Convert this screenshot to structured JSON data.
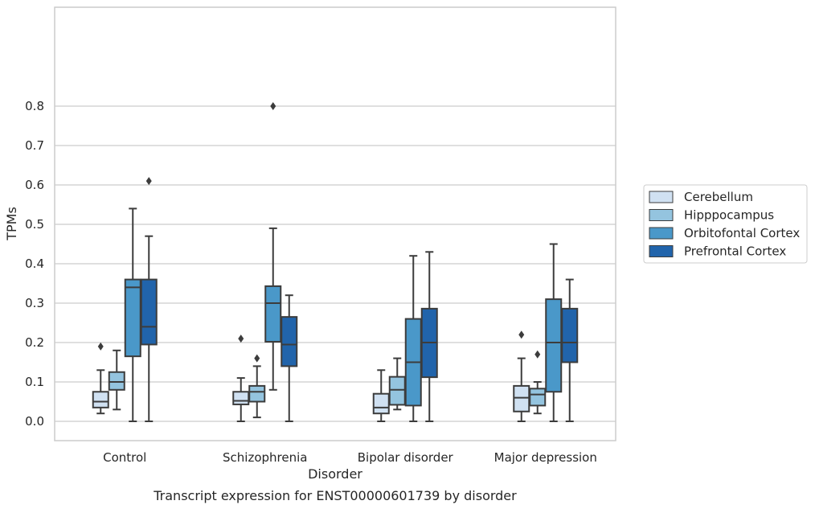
{
  "caption": "Transcript expression for ENST00000601739 by disorder",
  "chart_data": {
    "type": "box",
    "xlabel": "Disorder",
    "ylabel": "TPMs",
    "ylim": [
      -0.04,
      0.84
    ],
    "yticks": [
      0.0,
      0.1,
      0.2,
      0.3,
      0.4,
      0.5,
      0.6,
      0.7,
      0.8
    ],
    "ytick_labels": [
      "0.0",
      "0.1",
      "0.2",
      "0.3",
      "0.4",
      "0.5",
      "0.6",
      "0.7",
      "0.8"
    ],
    "categories": [
      "Control",
      "Schizophrenia",
      "Bipolar disorder",
      "Major depression"
    ],
    "grid": "horizontal",
    "legend_position": "right",
    "series": [
      {
        "name": "Cerebellum",
        "color": "#d0e1f2",
        "boxes": [
          {
            "whisker_low": 0.02,
            "q1": 0.035,
            "median": 0.05,
            "q3": 0.075,
            "whisker_high": 0.13,
            "outliers": [
              0.19
            ]
          },
          {
            "whisker_low": 0.0,
            "q1": 0.043,
            "median": 0.052,
            "q3": 0.075,
            "whisker_high": 0.11,
            "outliers": [
              0.21
            ]
          },
          {
            "whisker_low": 0.0,
            "q1": 0.02,
            "median": 0.035,
            "q3": 0.07,
            "whisker_high": 0.13,
            "outliers": []
          },
          {
            "whisker_low": 0.0,
            "q1": 0.025,
            "median": 0.06,
            "q3": 0.09,
            "whisker_high": 0.16,
            "outliers": [
              0.22
            ]
          }
        ]
      },
      {
        "name": "Hipppocampus",
        "color": "#94c4df",
        "boxes": [
          {
            "whisker_low": 0.03,
            "q1": 0.08,
            "median": 0.1,
            "q3": 0.125,
            "whisker_high": 0.18,
            "outliers": []
          },
          {
            "whisker_low": 0.01,
            "q1": 0.05,
            "median": 0.075,
            "q3": 0.09,
            "whisker_high": 0.14,
            "outliers": [
              0.16
            ]
          },
          {
            "whisker_low": 0.03,
            "q1": 0.042,
            "median": 0.08,
            "q3": 0.113,
            "whisker_high": 0.16,
            "outliers": []
          },
          {
            "whisker_low": 0.02,
            "q1": 0.04,
            "median": 0.068,
            "q3": 0.083,
            "whisker_high": 0.1,
            "outliers": [
              0.17
            ]
          }
        ]
      },
      {
        "name": "Orbitofontal Cortex",
        "color": "#4a98c9",
        "boxes": [
          {
            "whisker_low": 0.0,
            "q1": 0.165,
            "median": 0.34,
            "q3": 0.36,
            "whisker_high": 0.54,
            "outliers": []
          },
          {
            "whisker_low": 0.08,
            "q1": 0.202,
            "median": 0.3,
            "q3": 0.343,
            "whisker_high": 0.49,
            "outliers": [
              0.8
            ]
          },
          {
            "whisker_low": 0.0,
            "q1": 0.04,
            "median": 0.15,
            "q3": 0.26,
            "whisker_high": 0.42,
            "outliers": []
          },
          {
            "whisker_low": 0.0,
            "q1": 0.075,
            "median": 0.2,
            "q3": 0.31,
            "whisker_high": 0.45,
            "outliers": []
          }
        ]
      },
      {
        "name": "Prefrontal Cortex",
        "color": "#2164ab",
        "boxes": [
          {
            "whisker_low": 0.0,
            "q1": 0.195,
            "median": 0.24,
            "q3": 0.36,
            "whisker_high": 0.47,
            "outliers": [
              0.61
            ]
          },
          {
            "whisker_low": 0.0,
            "q1": 0.14,
            "median": 0.195,
            "q3": 0.265,
            "whisker_high": 0.32,
            "outliers": []
          },
          {
            "whisker_low": 0.0,
            "q1": 0.112,
            "median": 0.2,
            "q3": 0.286,
            "whisker_high": 0.43,
            "outliers": []
          },
          {
            "whisker_low": 0.0,
            "q1": 0.15,
            "median": 0.2,
            "q3": 0.286,
            "whisker_high": 0.36,
            "outliers": []
          }
        ]
      }
    ]
  }
}
